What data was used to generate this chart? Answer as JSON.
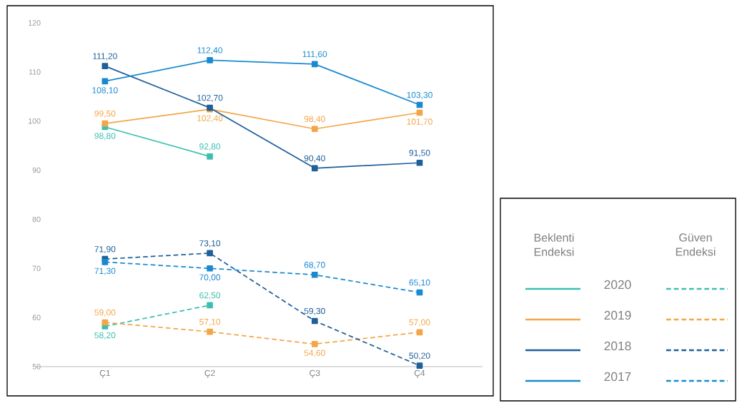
{
  "chart_data": {
    "type": "line",
    "categories": [
      "Ç1",
      "Ç2",
      "Ç3",
      "Ç4"
    ],
    "ylim": [
      50,
      120
    ],
    "yticks": [
      50,
      60,
      70,
      80,
      90,
      100,
      110,
      120
    ],
    "legend": "right",
    "marker": "square",
    "annotations": [
      "Beklenti Endeksi",
      "Güven Endeksi"
    ],
    "series": [
      {
        "name": "2020",
        "color": "#3dbfb0",
        "line_style": "solid",
        "values": [
          98.8,
          92.8,
          null,
          null
        ],
        "value_labels": [
          "98,80",
          "92,80",
          null,
          null
        ]
      },
      {
        "name": "2019",
        "color": "#f3a649",
        "line_style": "solid",
        "values": [
          99.5,
          102.4,
          98.4,
          101.7
        ],
        "value_labels": [
          "99,50",
          "102,40",
          "98,40",
          "101,70"
        ]
      },
      {
        "name": "2018",
        "color": "#1f5f9a",
        "line_style": "solid",
        "values": [
          111.2,
          102.7,
          90.4,
          91.5
        ],
        "value_labels": [
          "111,20",
          "102,70",
          "90,40",
          "91,50"
        ]
      },
      {
        "name": "2017",
        "color": "#1a8ad0",
        "line_style": "solid",
        "values": [
          108.1,
          112.4,
          111.6,
          103.3
        ],
        "value_labels": [
          "108,10",
          "112,40",
          "111,60",
          "103,30"
        ]
      },
      {
        "color": "#3dbfb0",
        "line_style": "dashed",
        "values": [
          58.2,
          62.5,
          null,
          null
        ],
        "value_labels": [
          "58,20",
          "62,50",
          null,
          null
        ]
      },
      {
        "color": "#f3a649",
        "line_style": "dashed",
        "values": [
          59.0,
          57.1,
          54.6,
          57.0
        ],
        "value_labels": [
          "59,00",
          "57,10",
          "54,60",
          "57,00"
        ]
      },
      {
        "color": "#1f5f9a",
        "line_style": "dashed",
        "values": [
          71.9,
          73.1,
          59.3,
          50.2
        ],
        "value_labels": [
          "71,90",
          "73,10",
          "59,30",
          "50,20"
        ]
      },
      {
        "color": "#1a8ad0",
        "line_style": "dashed",
        "values": [
          71.3,
          70.0,
          68.7,
          65.1
        ],
        "value_labels": [
          "71,30",
          "70,00",
          "68,70",
          "65,10"
        ]
      }
    ]
  }
}
